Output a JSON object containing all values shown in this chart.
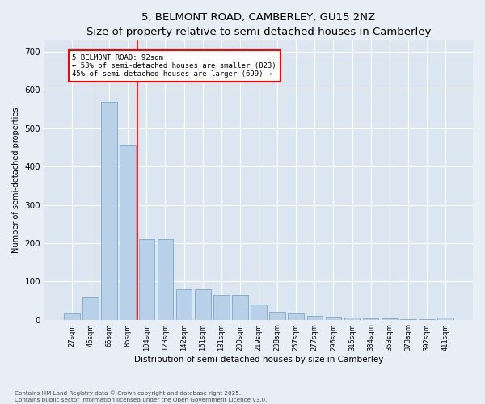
{
  "title1": "5, BELMONT ROAD, CAMBERLEY, GU15 2NZ",
  "title2": "Size of property relative to semi-detached houses in Camberley",
  "xlabel": "Distribution of semi-detached houses by size in Camberley",
  "ylabel": "Number of semi-detached properties",
  "categories": [
    "27sqm",
    "46sqm",
    "65sqm",
    "85sqm",
    "104sqm",
    "123sqm",
    "142sqm",
    "161sqm",
    "181sqm",
    "200sqm",
    "219sqm",
    "238sqm",
    "257sqm",
    "277sqm",
    "296sqm",
    "315sqm",
    "334sqm",
    "353sqm",
    "373sqm",
    "392sqm",
    "411sqm"
  ],
  "values": [
    18,
    58,
    570,
    455,
    210,
    210,
    80,
    80,
    65,
    65,
    40,
    20,
    18,
    10,
    8,
    5,
    4,
    3,
    2,
    2,
    5
  ],
  "bar_color": "#b8d0e8",
  "bar_edge_color": "#7aaac8",
  "vline_color": "red",
  "vline_x": 3.5,
  "ann_label": "5 BELMONT ROAD: 92sqm",
  "pct_smaller": 53,
  "count_smaller": 823,
  "pct_larger": 45,
  "count_larger": 699,
  "ann_edge_color": "red",
  "ylim": [
    0,
    730
  ],
  "yticks": [
    0,
    100,
    200,
    300,
    400,
    500,
    600,
    700
  ],
  "footer1": "Contains HM Land Registry data © Crown copyright and database right 2025.",
  "footer2": "Contains public sector information licensed under the Open Government Licence v3.0.",
  "bg_color": "#e8eef5",
  "plot_bg_color": "#dce6f0",
  "grid_color": "#ffffff",
  "title1_fontsize": 9.5,
  "title2_fontsize": 8.5,
  "xlabel_fontsize": 7.5,
  "ylabel_fontsize": 7,
  "xtick_fontsize": 6,
  "ytick_fontsize": 7.5,
  "ann_fontsize": 6.5,
  "footer_fontsize": 5.2
}
